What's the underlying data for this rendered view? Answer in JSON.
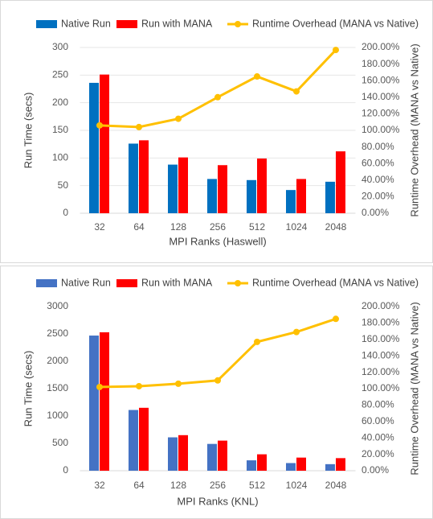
{
  "chart_data": [
    {
      "type": "bar",
      "categories": [
        "32",
        "64",
        "128",
        "256",
        "512",
        "1024",
        "2048"
      ],
      "series": [
        {
          "name": "Native Run",
          "color": "#0070c0",
          "values": [
            236,
            126,
            88,
            62,
            60,
            42,
            57
          ]
        },
        {
          "name": "Run with MANA",
          "color": "#ff0000",
          "values": [
            251,
            132,
            101,
            87,
            99,
            62,
            112
          ]
        },
        {
          "name": "Runtime Overhead (MANA vs Native)",
          "color": "#ffc000",
          "axis": "y2",
          "values": [
            106,
            104,
            114,
            140,
            165,
            147,
            197
          ]
        }
      ],
      "xlabel": "MPI Ranks (Haswell)",
      "ylabel": "Run Time (secs)",
      "y2label": "Runtime Overhead (MANA vs Native)",
      "ylim": [
        0,
        300
      ],
      "yticks": [
        0,
        50,
        100,
        150,
        200,
        250,
        300
      ],
      "y2lim": [
        0,
        200
      ],
      "y2ticks": [
        {
          "value": 0,
          "label": "0.00%"
        },
        {
          "value": 20,
          "label": "20.00%"
        },
        {
          "value": 40,
          "label": "40.00%"
        },
        {
          "value": 60,
          "label": "60.00%"
        },
        {
          "value": 80,
          "label": "80.00%"
        },
        {
          "value": 100,
          "label": "100.00%"
        },
        {
          "value": 120,
          "label": "120.00%"
        },
        {
          "value": 140,
          "label": "140.00%"
        },
        {
          "value": 160,
          "label": "160.00%"
        },
        {
          "value": 180,
          "label": "180.00%"
        },
        {
          "value": 200,
          "label": "200.00%"
        }
      ],
      "grid": true,
      "legend": "top"
    },
    {
      "type": "bar",
      "categories": [
        "32",
        "64",
        "128",
        "256",
        "512",
        "1024",
        "2048"
      ],
      "series": [
        {
          "name": "Native Run",
          "color": "#4472c4",
          "values": [
            2470,
            1110,
            610,
            490,
            190,
            140,
            120
          ]
        },
        {
          "name": "Run with MANA",
          "color": "#ff0000",
          "values": [
            2530,
            1150,
            650,
            550,
            300,
            240,
            230
          ]
        },
        {
          "name": "Runtime Overhead (MANA vs Native)",
          "color": "#ffc000",
          "axis": "y2",
          "values": [
            102,
            103,
            106,
            110,
            157,
            169,
            185
          ]
        }
      ],
      "xlabel": "MPI Ranks (KNL)",
      "ylabel": "Run Time (secs)",
      "y2label": "Runtime Overhead (MANA vs Native)",
      "ylim": [
        0,
        3000
      ],
      "yticks": [
        0,
        500,
        1000,
        1500,
        2000,
        2500,
        3000
      ],
      "y2lim": [
        0,
        200
      ],
      "y2ticks": [
        {
          "value": 0,
          "label": "0.00%"
        },
        {
          "value": 20,
          "label": "20.00%"
        },
        {
          "value": 40,
          "label": "40.00%"
        },
        {
          "value": 60,
          "label": "60.00%"
        },
        {
          "value": 80,
          "label": "80.00%"
        },
        {
          "value": 100,
          "label": "100.00%"
        },
        {
          "value": 120,
          "label": "120.00%"
        },
        {
          "value": 140,
          "label": "140.00%"
        },
        {
          "value": 160,
          "label": "160.00%"
        },
        {
          "value": 180,
          "label": "180.00%"
        },
        {
          "value": 200,
          "label": "200.00%"
        }
      ],
      "grid": false,
      "legend": "top"
    }
  ]
}
